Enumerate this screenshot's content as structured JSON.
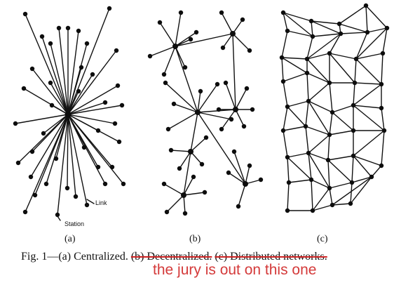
{
  "panels": [
    {
      "label": "(a)"
    },
    {
      "label": "(b)"
    },
    {
      "label": "(c)"
    }
  ],
  "annotations": {
    "link": "Link",
    "station": "Station"
  },
  "caption": {
    "prefix": "Fig. 1—(a) Centralized.",
    "struck_b": "(b) Decentralized.",
    "struck_c": "(c) Distributed networks."
  },
  "handwritten_note": "the jury is out on this one",
  "colors": {
    "ink": "#111111",
    "strike": "#cc2222",
    "note": "#d43a3a"
  }
}
